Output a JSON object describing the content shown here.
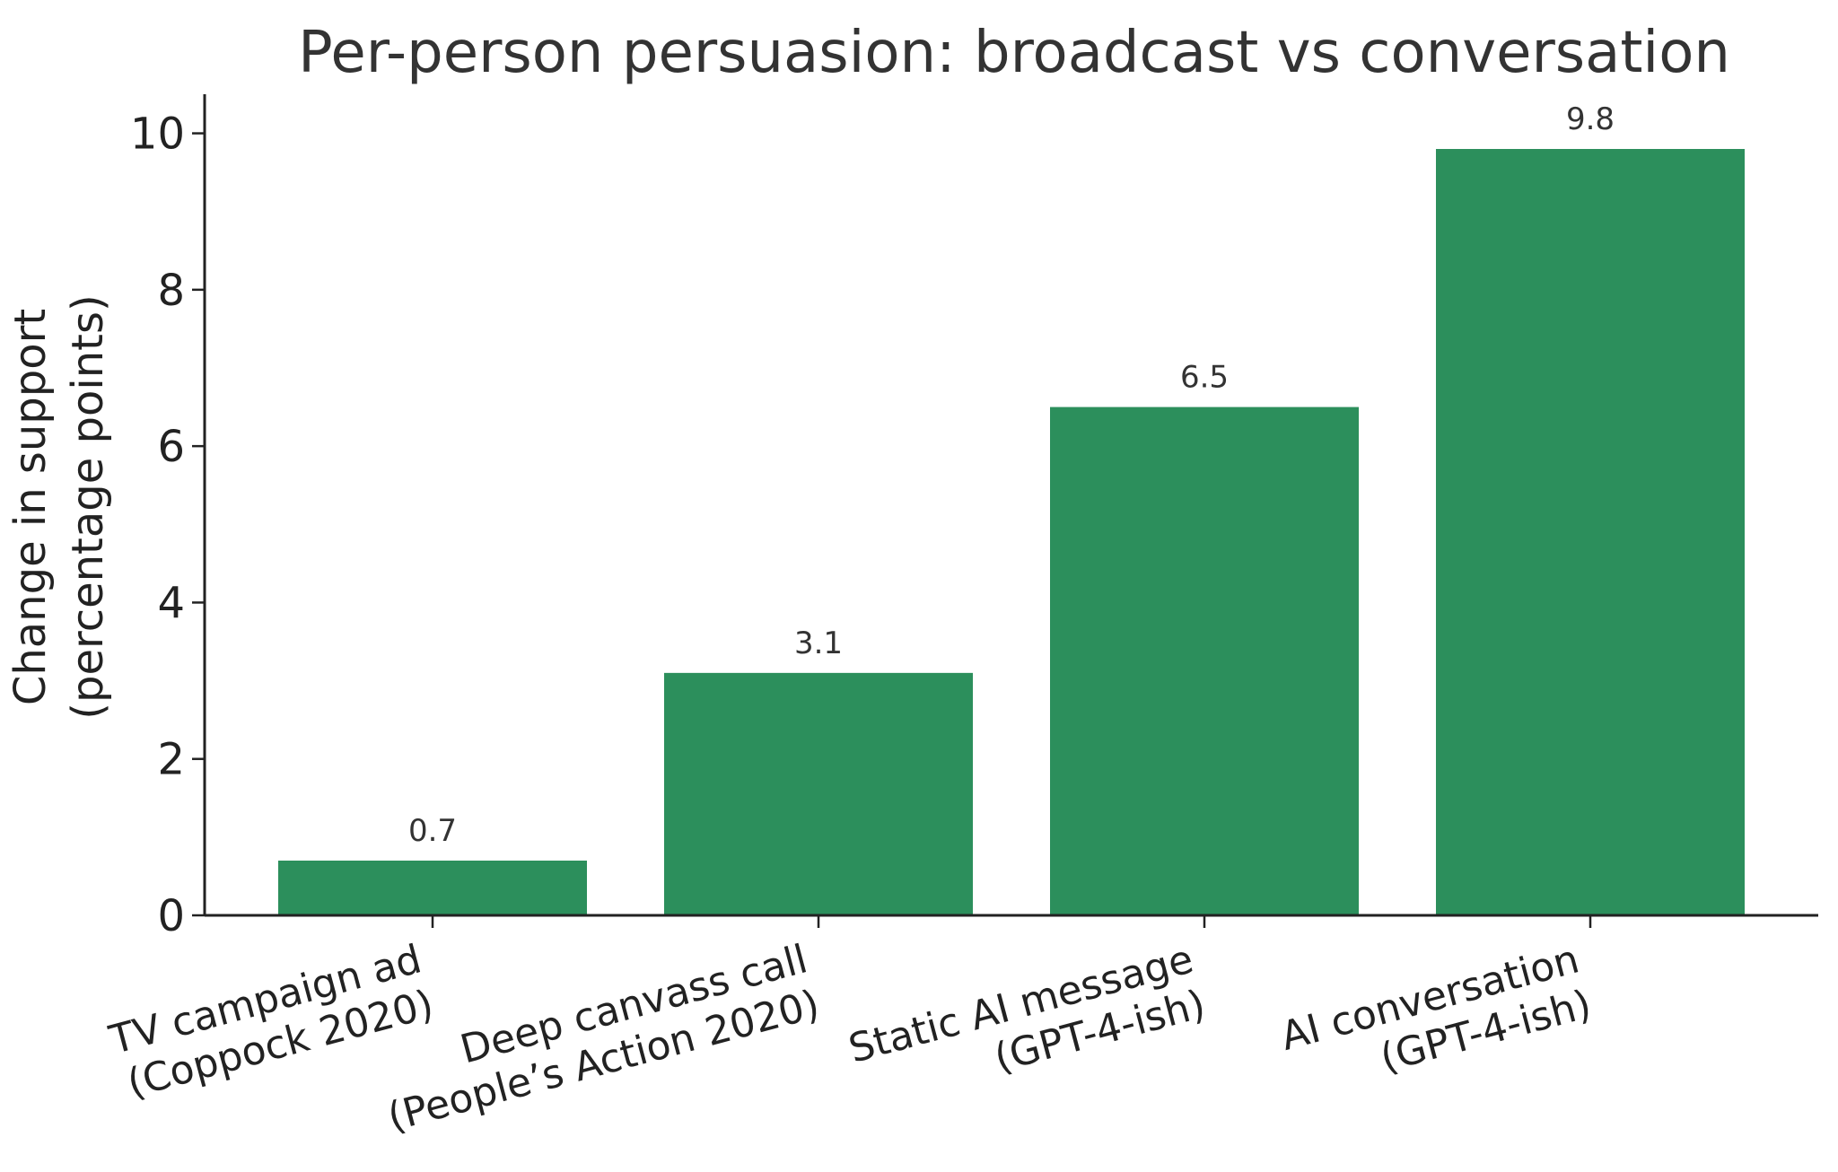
{
  "chart_data": {
    "type": "bar",
    "title": "Per-person persuasion: broadcast vs conversation",
    "xlabel": "",
    "ylabel": [
      "Change in support",
      "(percentage points)"
    ],
    "categories": [
      [
        "TV campaign ad",
        "(Coppock 2020)"
      ],
      [
        "Deep canvass call",
        "(People’s Action 2020)"
      ],
      [
        "Static AI message",
        "(GPT-4-ish)"
      ],
      [
        "AI conversation",
        "(GPT-4-ish)"
      ]
    ],
    "values": [
      0.7,
      3.1,
      6.5,
      9.8
    ],
    "data_labels": [
      "0.7",
      "3.1",
      "6.5",
      "9.8"
    ],
    "yticks": [
      0,
      2,
      4,
      6,
      8,
      10
    ],
    "ylim": [
      0,
      10.5
    ],
    "bar_color": "#2c8f5c",
    "axis_color": "#222222",
    "grid": false,
    "legend": false
  }
}
